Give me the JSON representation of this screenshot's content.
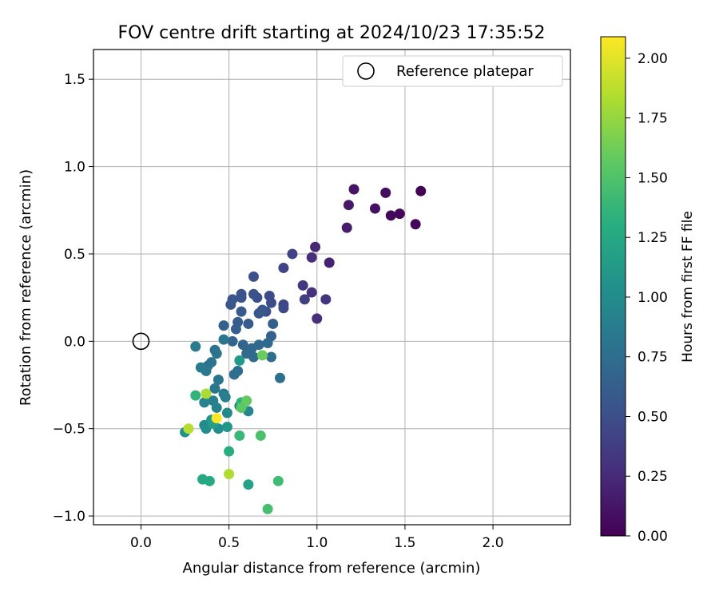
{
  "chart_data": {
    "type": "scatter",
    "title": "FOV centre drift starting at 2024/10/23 17:35:52",
    "xlabel": "Angular distance from reference (arcmin)",
    "ylabel": "Rotation from reference (arcmin)",
    "xlim": [
      -0.27,
      2.44
    ],
    "ylim": [
      -1.05,
      1.67
    ],
    "xticks": [
      0.0,
      0.5,
      1.0,
      1.5,
      2.0
    ],
    "xtick_labels": [
      "0.0",
      "0.5",
      "1.0",
      "1.5",
      "2.0"
    ],
    "yticks": [
      -1.0,
      -0.5,
      0.0,
      0.5,
      1.0,
      1.5
    ],
    "ytick_labels": [
      "−1.0",
      "−0.5",
      "0.0",
      "0.5",
      "1.0",
      "1.5"
    ],
    "grid": true,
    "legend": {
      "placement": "top-right",
      "entries": [
        {
          "label": "Reference platepar",
          "marker": "open-circle"
        }
      ]
    },
    "reference_point": {
      "x": 0.0,
      "y": 0.0
    },
    "colorbar": {
      "label": "Hours from first FF file",
      "colormap": "viridis",
      "range": [
        0.0,
        2.09
      ],
      "ticks": [
        0.0,
        0.25,
        0.5,
        0.75,
        1.0,
        1.25,
        1.5,
        1.75,
        2.0
      ],
      "tick_labels": [
        "0.00",
        "0.25",
        "0.50",
        "0.75",
        "1.00",
        "1.25",
        "1.50",
        "1.75",
        "2.00"
      ]
    },
    "series": [
      {
        "points": [
          [
            1.59,
            0.86,
            0.0
          ],
          [
            1.56,
            0.67,
            0.02
          ],
          [
            1.47,
            0.73,
            0.04
          ],
          [
            1.42,
            0.72,
            0.05
          ],
          [
            1.39,
            0.85,
            0.07
          ],
          [
            1.33,
            0.76,
            0.09
          ],
          [
            1.21,
            0.87,
            0.12
          ],
          [
            1.18,
            0.78,
            0.14
          ],
          [
            1.17,
            0.65,
            0.16
          ],
          [
            1.07,
            0.45,
            0.2
          ],
          [
            0.99,
            0.54,
            0.23
          ],
          [
            0.97,
            0.48,
            0.26
          ],
          [
            1.0,
            0.13,
            0.28
          ],
          [
            0.97,
            0.28,
            0.3
          ],
          [
            1.05,
            0.24,
            0.32
          ],
          [
            0.92,
            0.32,
            0.34
          ],
          [
            0.93,
            0.24,
            0.38
          ],
          [
            0.86,
            0.5,
            0.4
          ],
          [
            0.81,
            0.42,
            0.42
          ],
          [
            0.81,
            0.21,
            0.44
          ],
          [
            0.81,
            0.19,
            0.46
          ],
          [
            0.73,
            0.26,
            0.47
          ],
          [
            0.74,
            0.22,
            0.49
          ],
          [
            0.71,
            0.17,
            0.5
          ],
          [
            0.66,
            0.25,
            0.5
          ],
          [
            0.64,
            0.37,
            0.51
          ],
          [
            0.64,
            0.27,
            0.52
          ],
          [
            0.57,
            0.27,
            0.53
          ],
          [
            0.57,
            0.25,
            0.54
          ],
          [
            0.52,
            0.24,
            0.55
          ],
          [
            0.51,
            0.21,
            0.56
          ],
          [
            0.67,
            0.16,
            0.57
          ],
          [
            0.69,
            0.18,
            0.58
          ],
          [
            0.57,
            0.17,
            0.59
          ],
          [
            0.61,
            0.1,
            0.6
          ],
          [
            0.55,
            0.11,
            0.61
          ],
          [
            0.54,
            0.07,
            0.63
          ],
          [
            0.75,
            0.1,
            0.64
          ],
          [
            0.74,
            0.03,
            0.65
          ],
          [
            0.47,
            0.09,
            0.66
          ],
          [
            0.52,
            0.0,
            0.67
          ],
          [
            0.58,
            -0.02,
            0.68
          ],
          [
            0.63,
            -0.04,
            0.69
          ],
          [
            0.67,
            -0.02,
            0.7
          ],
          [
            0.72,
            -0.01,
            0.71
          ],
          [
            0.6,
            -0.07,
            0.72
          ],
          [
            0.64,
            -0.09,
            0.73
          ],
          [
            0.74,
            -0.09,
            0.74
          ],
          [
            0.53,
            -0.19,
            0.75
          ],
          [
            0.55,
            -0.17,
            0.76
          ],
          [
            0.79,
            -0.21,
            0.77
          ],
          [
            0.38,
            -0.14,
            0.78
          ],
          [
            0.4,
            -0.12,
            0.79
          ],
          [
            0.43,
            -0.07,
            0.79
          ],
          [
            0.42,
            -0.05,
            0.8
          ],
          [
            0.47,
            0.01,
            0.81
          ],
          [
            0.44,
            -0.22,
            0.82
          ],
          [
            0.42,
            -0.27,
            0.83
          ],
          [
            0.37,
            -0.17,
            0.84
          ],
          [
            0.34,
            -0.15,
            0.85
          ],
          [
            0.31,
            -0.03,
            0.86
          ],
          [
            0.47,
            -0.3,
            0.87
          ],
          [
            0.48,
            -0.32,
            0.89
          ],
          [
            0.41,
            -0.34,
            0.9
          ],
          [
            0.43,
            -0.38,
            0.91
          ],
          [
            0.36,
            -0.35,
            0.93
          ],
          [
            0.61,
            -0.4,
            0.95
          ],
          [
            0.56,
            -0.37,
            0.98
          ],
          [
            0.49,
            -0.41,
            0.99
          ],
          [
            0.36,
            -0.48,
            0.99
          ],
          [
            0.37,
            -0.5,
            1.01
          ],
          [
            0.44,
            -0.5,
            1.03
          ],
          [
            0.25,
            -0.52,
            1.05
          ],
          [
            0.4,
            -0.45,
            1.07
          ],
          [
            0.49,
            -0.49,
            1.1
          ],
          [
            0.56,
            -0.11,
            1.13
          ],
          [
            0.41,
            -0.47,
            1.16
          ],
          [
            0.61,
            -0.82,
            1.2
          ],
          [
            0.35,
            -0.79,
            1.25
          ],
          [
            0.39,
            -0.8,
            1.27
          ],
          [
            0.5,
            -0.63,
            1.3
          ],
          [
            0.57,
            -0.35,
            1.33
          ],
          [
            0.31,
            -0.31,
            1.36
          ],
          [
            0.56,
            -0.54,
            1.39
          ],
          [
            0.78,
            -0.8,
            1.43
          ],
          [
            0.72,
            -0.96,
            1.45
          ],
          [
            0.68,
            -0.54,
            1.48
          ],
          [
            0.57,
            -0.38,
            1.55
          ],
          [
            0.6,
            -0.34,
            1.58
          ],
          [
            0.69,
            -0.08,
            1.6
          ],
          [
            0.37,
            -0.3,
            1.82
          ],
          [
            0.5,
            -0.76,
            1.84
          ],
          [
            0.27,
            -0.5,
            1.86
          ],
          [
            0.43,
            -0.44,
            2.09
          ]
        ]
      }
    ]
  }
}
